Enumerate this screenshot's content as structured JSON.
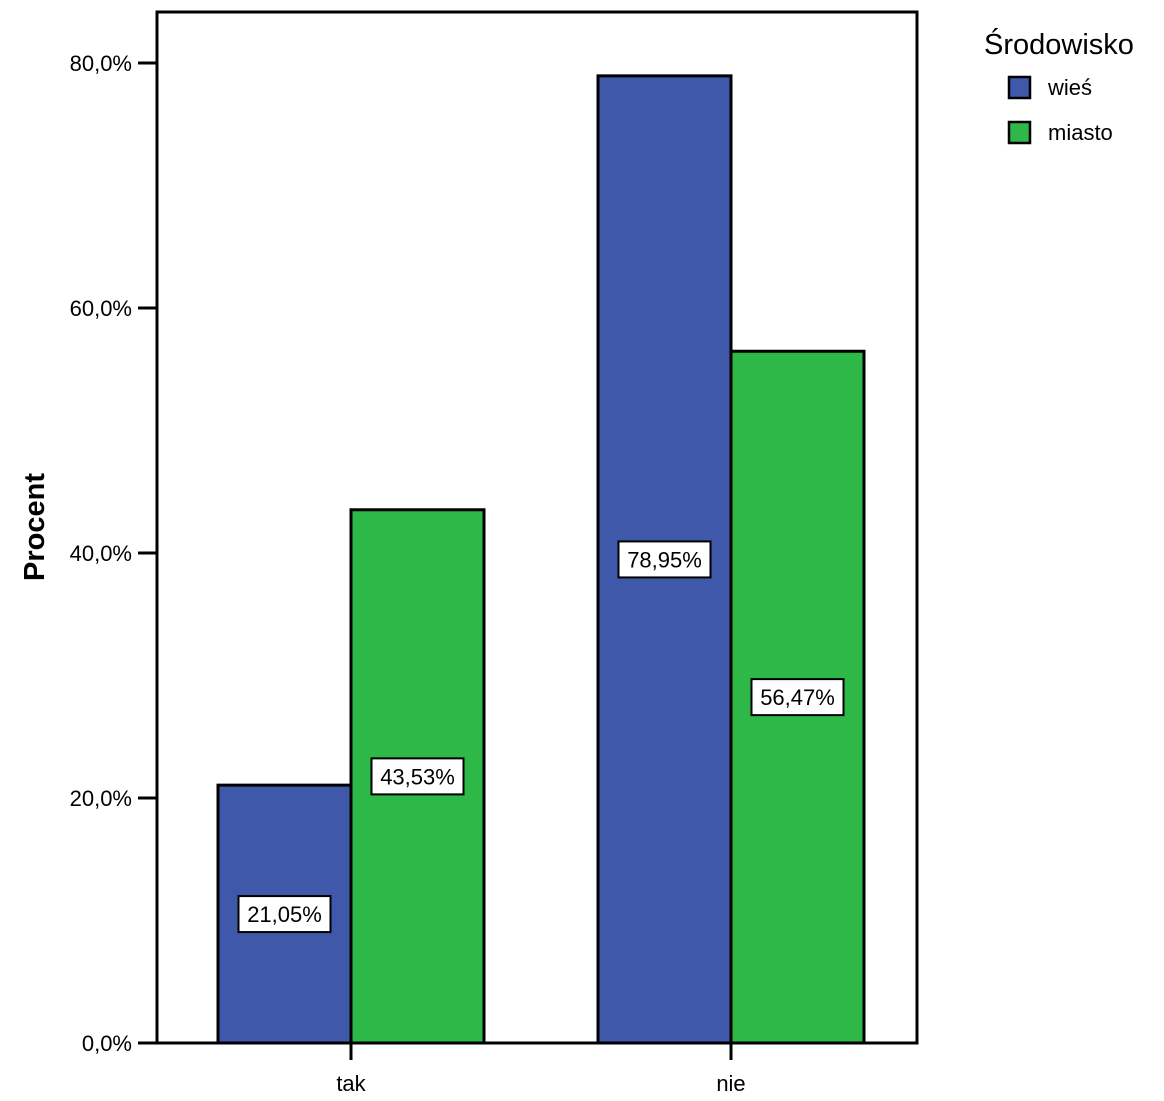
{
  "chart_data": {
    "type": "bar",
    "categories": [
      "tak",
      "nie"
    ],
    "series": [
      {
        "name": "wieś",
        "values": [
          21.05,
          78.95
        ],
        "labels": [
          "21,05%",
          "78,95%"
        ]
      },
      {
        "name": "miasto",
        "values": [
          43.53,
          56.47
        ],
        "labels": [
          "43,53%",
          "56,47%"
        ]
      }
    ],
    "ylabel": "Procent",
    "xlabel": "",
    "ylim": [
      0,
      85
    ],
    "yticks": [
      0,
      20,
      40,
      60,
      80
    ],
    "ytick_labels": [
      "0,0%",
      "20,0%",
      "40,0%",
      "60,0%",
      "80,0%"
    ],
    "legend": {
      "title": "Środowisko",
      "position": "top-right"
    },
    "colors": {
      "wieś": "#3f58aa",
      "miasto": "#2eb848"
    },
    "grid": false
  }
}
